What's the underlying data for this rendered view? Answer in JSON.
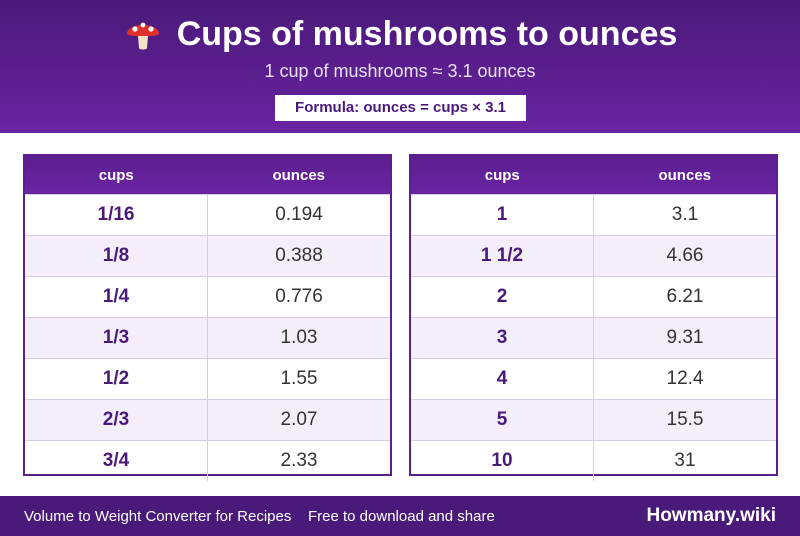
{
  "header": {
    "icon": "mushroom-icon",
    "title": "Cups of mushrooms to ounces",
    "subtitle": "1 cup of mushrooms ≈ 3.1 ounces",
    "formula": "Formula: ounces = cups × 3.1"
  },
  "tables": [
    {
      "headers": [
        "cups",
        "ounces"
      ],
      "rows": [
        [
          "1/16",
          "0.194"
        ],
        [
          "1/8",
          "0.388"
        ],
        [
          "1/4",
          "0.776"
        ],
        [
          "1/3",
          "1.03"
        ],
        [
          "1/2",
          "1.55"
        ],
        [
          "2/3",
          "2.07"
        ],
        [
          "3/4",
          "2.33"
        ]
      ]
    },
    {
      "headers": [
        "cups",
        "ounces"
      ],
      "rows": [
        [
          "1",
          "3.1"
        ],
        [
          "1 1/2",
          "4.66"
        ],
        [
          "2",
          "6.21"
        ],
        [
          "3",
          "9.31"
        ],
        [
          "4",
          "12.4"
        ],
        [
          "5",
          "15.5"
        ],
        [
          "10",
          "31"
        ]
      ]
    }
  ],
  "footer": {
    "left": "Volume to Weight Converter for Recipes",
    "middle": "Free to download and share",
    "brand": "Howmany.wiki"
  },
  "colors": {
    "primary": "#5b1f8f",
    "dark": "#4a1a7a",
    "row_alt": "#f3eefa"
  }
}
